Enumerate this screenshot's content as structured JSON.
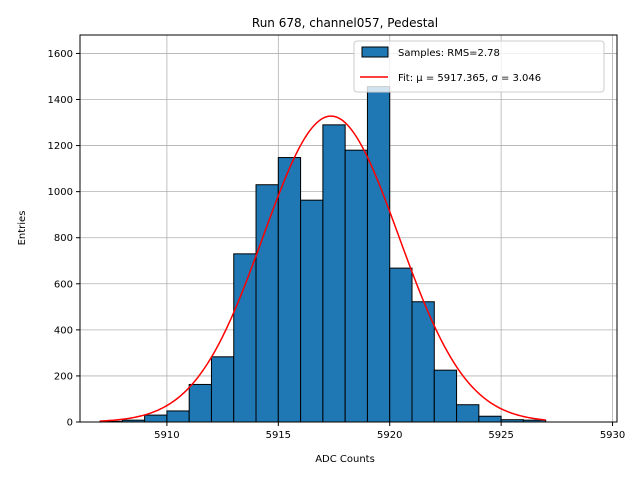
{
  "chart_data": {
    "type": "bar",
    "title": "Run 678, channel057, Pedestal",
    "xlabel": "ADC Counts",
    "ylabel": "Entries",
    "xlim": [
      5906.1,
      5930.2
    ],
    "ylim": [
      0,
      1680
    ],
    "xticks": [
      5910,
      5915,
      5920,
      5925,
      5930
    ],
    "yticks": [
      0,
      200,
      400,
      600,
      800,
      1000,
      1200,
      1400,
      1600
    ],
    "grid": true,
    "legend_position": "top-right",
    "bar_color": "#1f77b4",
    "fit_color": "#ff0000",
    "series": [
      {
        "name": "Samples: RMS=2.78",
        "type": "histogram",
        "bin_edges": [
          5907,
          5908,
          5909,
          5910,
          5911,
          5912,
          5913,
          5914,
          5915,
          5916,
          5917,
          5918,
          5919,
          5920,
          5921,
          5922,
          5923,
          5924,
          5925,
          5926,
          5927
        ],
        "counts": [
          3,
          8,
          30,
          48,
          163,
          283,
          730,
          1030,
          1148,
          963,
          1290,
          1180,
          1456,
          668,
          522,
          225,
          75,
          25,
          10,
          8
        ]
      },
      {
        "name": "Fit: μ = 5917.365, σ = 3.046",
        "type": "gaussian",
        "mu": 5917.365,
        "sigma": 3.046,
        "amplitude": 1328,
        "x_range": [
          5907,
          5927
        ]
      }
    ]
  }
}
